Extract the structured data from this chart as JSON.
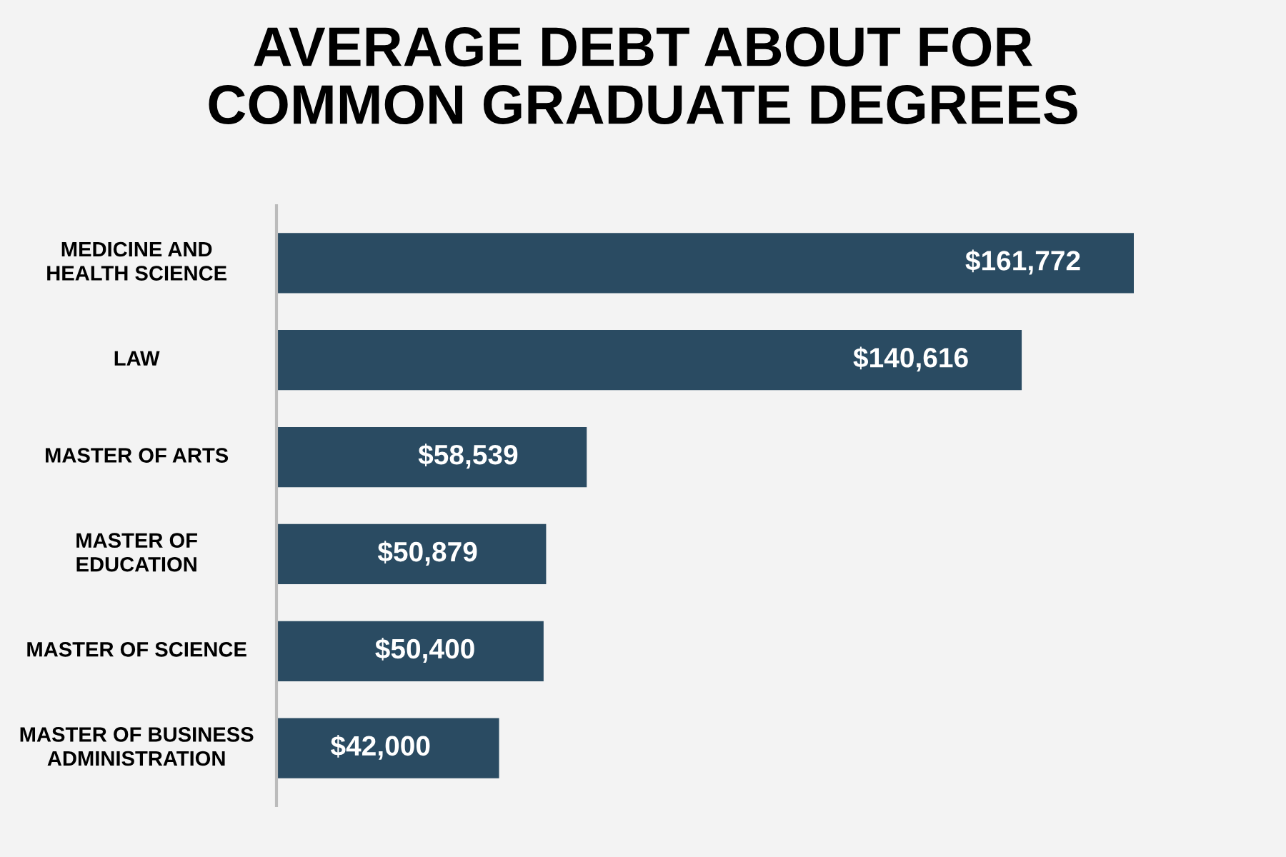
{
  "chart_data": {
    "type": "bar",
    "orientation": "horizontal",
    "title": "AVERAGE DEBT ABOUT FOR\nCOMMON GRADUATE DEGREES",
    "categories": [
      "MEDICINE AND\nHEALTH SCIENCE",
      "LAW",
      "MASTER OF ARTS",
      "MASTER OF\nEDUCATION",
      "MASTER OF SCIENCE",
      "MASTER OF BUSINESS\nADMINISTRATION"
    ],
    "values": [
      161772,
      140616,
      58539,
      50879,
      50400,
      42000
    ],
    "value_labels": [
      "$161,772",
      "$140,616",
      "$58,539",
      "$50,879",
      "$50,400",
      "$42,000"
    ],
    "color": "#2a4b62",
    "grid": false,
    "legend": false
  }
}
